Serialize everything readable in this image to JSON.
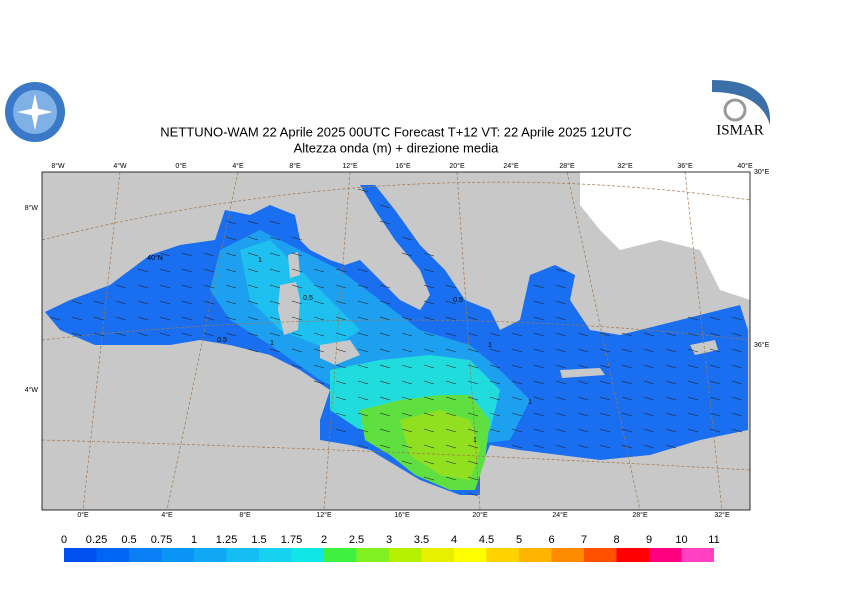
{
  "header": {
    "title": "NETTUNO-WAM  22   Aprile  2025 00UTC Forecast T+12 VT: 22   Aprile  2025 12UTC",
    "subtitle": "Altezza onda (m) + direzione media",
    "logo_right": "ISMAR"
  },
  "map": {
    "top_labels": [
      "8°W",
      "4°W",
      "0°E",
      "4°E",
      "8°E",
      "12°E",
      "16°E",
      "20°E",
      "24°E",
      "28°E",
      "32°E",
      "36°E",
      "40°E"
    ],
    "bottom_labels": [
      "0°E",
      "4°E",
      "8°E",
      "12°E",
      "16°E",
      "20°E",
      "24°E",
      "28°E",
      "32°E"
    ],
    "left_labels": [
      "8°W",
      "4°W"
    ],
    "right_labels": [
      "30°E",
      "36°E"
    ],
    "inner_labels": [
      "40°N"
    ],
    "contour_labels": [
      "1",
      "0.5",
      "1",
      "0.5",
      "1",
      "1",
      "0.5",
      "1"
    ]
  },
  "colorbar": {
    "labels": [
      "0",
      "0.25",
      "0.5",
      "0.75",
      "1",
      "1.25",
      "1.5",
      "1.75",
      "2",
      "2.5",
      "3",
      "3.5",
      "4",
      "4.5",
      "5",
      "6",
      "7",
      "8",
      "9",
      "10",
      "11"
    ],
    "colors": [
      "#0050f0",
      "#0064f5",
      "#0a7ef5",
      "#0a94f5",
      "#10a8f5",
      "#14bef5",
      "#14d2f0",
      "#10e6e6",
      "#40f040",
      "#80f020",
      "#b4f000",
      "#e6f000",
      "#ffff00",
      "#ffd200",
      "#ffb400",
      "#ff8c00",
      "#ff5000",
      "#ff0000",
      "#ff0080",
      "#ff40c0"
    ]
  }
}
